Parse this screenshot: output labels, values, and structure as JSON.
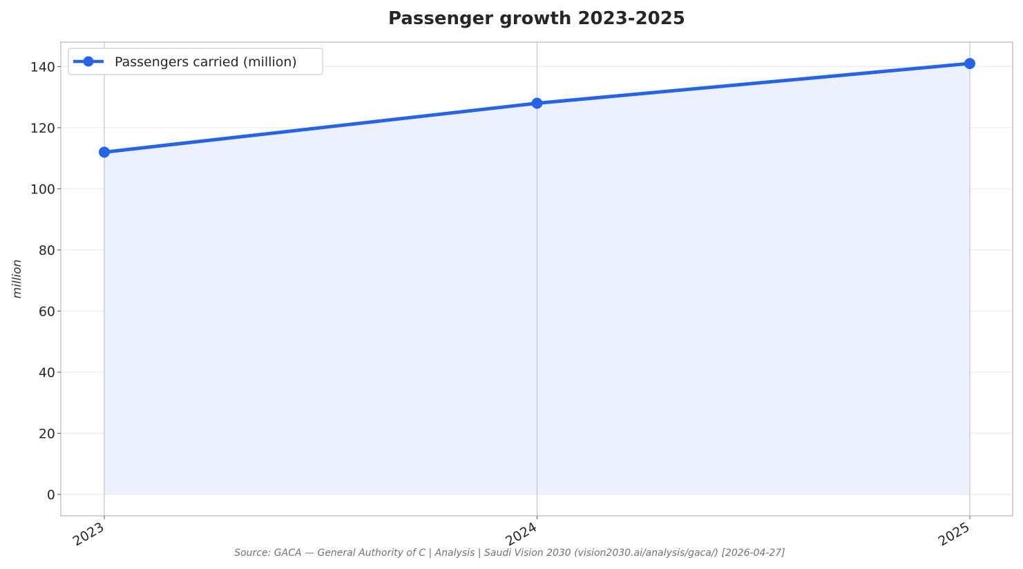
{
  "chart_data": {
    "type": "area",
    "title": "Passenger growth 2023-2025",
    "xlabel": "",
    "ylabel": "million",
    "x": [
      "2023",
      "2024",
      "2025"
    ],
    "series": [
      {
        "name": "Passengers carried (million)",
        "values": [
          112,
          128,
          141
        ]
      }
    ],
    "ylim": [
      -7,
      148
    ],
    "yticks": [
      0,
      20,
      40,
      60,
      80,
      100,
      120,
      140
    ],
    "grid": true,
    "legend": "top-left",
    "colors": {
      "line": "#2563eb",
      "fill": "#ecf1fd",
      "grid": "#ebebeb",
      "frame": "#c8c8c8",
      "vgrid": "#c0c4d0"
    },
    "source": "Source: GACA — General Authority of C | Analysis | Saudi Vision 2030 (vision2030.ai/analysis/gaca/) [2026-04-27]"
  }
}
